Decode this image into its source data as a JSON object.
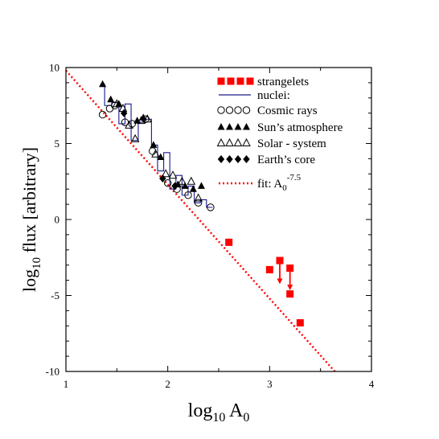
{
  "chart_data": {
    "type": "scatter",
    "title": "",
    "xlabel": {
      "main": "log",
      "sub": "10",
      "rest": " A",
      "rest_sub": "0"
    },
    "ylabel": {
      "main": "log",
      "sub": "10",
      "rest": " flux [arbitrary]"
    },
    "xlim": [
      1,
      4
    ],
    "ylim": [
      -10,
      10
    ],
    "x_ticks": [
      1,
      2,
      3,
      4
    ],
    "x_tick_labels": [
      "1",
      "2",
      "3",
      "4"
    ],
    "y_ticks": [
      -10,
      -5,
      0,
      5,
      10
    ],
    "y_tick_labels": [
      "-10",
      "-5",
      "0",
      "5",
      "10"
    ],
    "grid": false,
    "legend_position": "top-right",
    "legend": [
      {
        "label": "strangelets",
        "marker": "red-square"
      },
      {
        "label": "nuclei:",
        "marker": "blue-line"
      },
      {
        "label": "Cosmic rays",
        "marker": "open-circle"
      },
      {
        "label": "Sun’s atmosphere",
        "marker": "filled-triangle"
      },
      {
        "label": "Solar - system",
        "marker": "open-triangle"
      },
      {
        "label": "Earth’s core",
        "marker": "filled-diamond"
      },
      {
        "label": "fit: A",
        "sub": "0",
        "sup": "-7.5",
        "marker": "red-dotted-line"
      }
    ],
    "fit": {
      "exponent": -7.5,
      "intercept": 17.3
    },
    "series": [
      {
        "name": "strangelets",
        "color": "#ff0000",
        "points": [
          {
            "x": 2.6,
            "y": -1.5
          },
          {
            "x": 3.0,
            "y": -3.3
          },
          {
            "x": 3.1,
            "y": -2.7,
            "upper_limit_to": -4.2
          },
          {
            "x": 3.2,
            "y": -3.2,
            "upper_limit_to": -4.6
          },
          {
            "x": 3.2,
            "y": -4.9
          },
          {
            "x": 3.3,
            "y": -6.8
          }
        ]
      },
      {
        "name": "nuclei:",
        "color": "#1a1a8c",
        "step_x": [
          1.34,
          1.38,
          1.45,
          1.52,
          1.58,
          1.64,
          1.71,
          1.78,
          1.84,
          1.9,
          1.96,
          2.02,
          2.08,
          2.14,
          2.2,
          2.26,
          2.32,
          2.38,
          2.44
        ],
        "step_y": [
          8.9,
          7.5,
          7.7,
          6.3,
          7.6,
          5.2,
          6.4,
          6.6,
          4.9,
          3.2,
          4.4,
          2.0,
          2.9,
          1.6,
          2.2,
          1.1,
          1.3,
          0.8
        ]
      },
      {
        "name": "Cosmic rays",
        "points": [
          {
            "x": 1.36,
            "y": 6.9
          },
          {
            "x": 1.43,
            "y": 7.3
          },
          {
            "x": 1.48,
            "y": 7.5
          },
          {
            "x": 1.58,
            "y": 6.4
          },
          {
            "x": 1.65,
            "y": 6.3
          },
          {
            "x": 1.78,
            "y": 6.6
          },
          {
            "x": 1.85,
            "y": 4.5
          },
          {
            "x": 2.0,
            "y": 2.4
          },
          {
            "x": 2.09,
            "y": 2.0
          },
          {
            "x": 2.2,
            "y": 1.6
          },
          {
            "x": 2.3,
            "y": 1.1
          },
          {
            "x": 2.42,
            "y": 0.8
          }
        ]
      },
      {
        "name": "Sun’s atmosphere",
        "points": [
          {
            "x": 1.36,
            "y": 8.9
          },
          {
            "x": 1.44,
            "y": 7.9
          },
          {
            "x": 1.52,
            "y": 7.6
          },
          {
            "x": 1.7,
            "y": 6.5
          },
          {
            "x": 1.76,
            "y": 6.7
          },
          {
            "x": 1.86,
            "y": 4.9
          },
          {
            "x": 1.93,
            "y": 4.1
          },
          {
            "x": 2.1,
            "y": 2.3
          },
          {
            "x": 2.17,
            "y": 2.2
          },
          {
            "x": 2.25,
            "y": 2.0
          },
          {
            "x": 2.33,
            "y": 2.2
          }
        ]
      },
      {
        "name": "Solar - system",
        "points": [
          {
            "x": 1.5,
            "y": 7.6
          },
          {
            "x": 1.56,
            "y": 7.3
          },
          {
            "x": 1.62,
            "y": 6.2
          },
          {
            "x": 1.68,
            "y": 5.3
          },
          {
            "x": 1.74,
            "y": 6.5
          },
          {
            "x": 1.8,
            "y": 6.6
          },
          {
            "x": 1.88,
            "y": 4.3
          },
          {
            "x": 1.98,
            "y": 3.0
          },
          {
            "x": 2.05,
            "y": 2.9
          },
          {
            "x": 2.14,
            "y": 2.5
          },
          {
            "x": 2.23,
            "y": 2.5
          },
          {
            "x": 2.3,
            "y": 1.4
          }
        ]
      },
      {
        "name": "Earth’s core",
        "points": [
          {
            "x": 1.57,
            "y": 7.0
          },
          {
            "x": 1.95,
            "y": 2.7
          },
          {
            "x": 2.07,
            "y": 2.2
          }
        ]
      }
    ]
  }
}
